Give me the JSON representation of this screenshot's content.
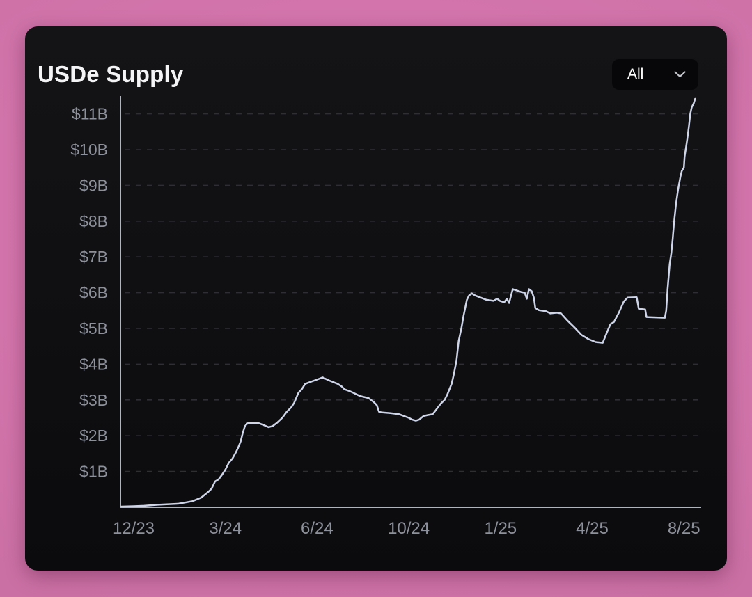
{
  "page": {
    "background_inner": "#dc7ab5",
    "background_outer": "#c46c9e",
    "card_background": "#0e0e10"
  },
  "header": {
    "title": "USDe Supply",
    "range_selector": {
      "value": "All",
      "icon": "chevron-down-icon"
    }
  },
  "chart_data": {
    "type": "line",
    "title": "USDe Supply",
    "series_name": "USDe Supply",
    "unit": "$B",
    "legend": "none",
    "grid": "dashed horizontal gridlines",
    "ylim": [
      0,
      11.6
    ],
    "x_unit": "months since Dec 2023 (tick marks equally spaced on screen)",
    "x_ticks": [
      {
        "m": 0,
        "label": "12/23"
      },
      {
        "m": 3,
        "label": "3/24"
      },
      {
        "m": 6,
        "label": "6/24"
      },
      {
        "m": 10,
        "label": "10/24"
      },
      {
        "m": 13,
        "label": "1/25"
      },
      {
        "m": 16,
        "label": "4/25"
      },
      {
        "m": 20,
        "label": "8/25"
      }
    ],
    "y_ticks": [
      {
        "value": 1,
        "label": "$1B"
      },
      {
        "value": 2,
        "label": "$2B"
      },
      {
        "value": 3,
        "label": "$3B"
      },
      {
        "value": 4,
        "label": "$4B"
      },
      {
        "value": 5,
        "label": "$5B"
      },
      {
        "value": 6,
        "label": "$6B"
      },
      {
        "value": 7,
        "label": "$7B"
      },
      {
        "value": 8,
        "label": "$8B"
      },
      {
        "value": 9,
        "label": "$9B"
      },
      {
        "value": 10,
        "label": "$10B"
      },
      {
        "value": 11,
        "label": "$11B"
      }
    ],
    "points_format": "[months_since_12_2023, supply_billions_usd]",
    "points": [
      [
        -0.4,
        0.02
      ],
      [
        0,
        0.03
      ],
      [
        0.34,
        0.04
      ],
      [
        0.79,
        0.07
      ],
      [
        1.47,
        0.1
      ],
      [
        1.92,
        0.17
      ],
      [
        2.21,
        0.27
      ],
      [
        2.44,
        0.43
      ],
      [
        2.55,
        0.52
      ],
      [
        2.66,
        0.72
      ],
      [
        2.78,
        0.78
      ],
      [
        2.89,
        0.91
      ],
      [
        3.0,
        1.05
      ],
      [
        3.11,
        1.24
      ],
      [
        3.23,
        1.36
      ],
      [
        3.34,
        1.53
      ],
      [
        3.41,
        1.65
      ],
      [
        3.5,
        1.84
      ],
      [
        3.57,
        2.08
      ],
      [
        3.64,
        2.27
      ],
      [
        3.73,
        2.35
      ],
      [
        4.09,
        2.35
      ],
      [
        4.25,
        2.3
      ],
      [
        4.41,
        2.24
      ],
      [
        4.55,
        2.27
      ],
      [
        4.7,
        2.37
      ],
      [
        4.86,
        2.5
      ],
      [
        5.0,
        2.66
      ],
      [
        5.16,
        2.8
      ],
      [
        5.25,
        2.92
      ],
      [
        5.39,
        3.2
      ],
      [
        5.5,
        3.3
      ],
      [
        5.61,
        3.45
      ],
      [
        5.77,
        3.5
      ],
      [
        6.0,
        3.57
      ],
      [
        6.24,
        3.63
      ],
      [
        6.5,
        3.55
      ],
      [
        6.9,
        3.45
      ],
      [
        7.07,
        3.38
      ],
      [
        7.19,
        3.3
      ],
      [
        7.45,
        3.24
      ],
      [
        7.87,
        3.11
      ],
      [
        8.25,
        3.05
      ],
      [
        8.49,
        2.93
      ],
      [
        8.61,
        2.85
      ],
      [
        8.7,
        2.67
      ],
      [
        8.84,
        2.65
      ],
      [
        9.2,
        2.63
      ],
      [
        9.59,
        2.6
      ],
      [
        9.79,
        2.55
      ],
      [
        10.0,
        2.5
      ],
      [
        10.11,
        2.45
      ],
      [
        10.23,
        2.42
      ],
      [
        10.34,
        2.45
      ],
      [
        10.48,
        2.55
      ],
      [
        10.64,
        2.58
      ],
      [
        10.78,
        2.6
      ],
      [
        10.87,
        2.7
      ],
      [
        11.05,
        2.9
      ],
      [
        11.17,
        3.0
      ],
      [
        11.26,
        3.15
      ],
      [
        11.33,
        3.3
      ],
      [
        11.4,
        3.45
      ],
      [
        11.47,
        3.7
      ],
      [
        11.56,
        4.1
      ],
      [
        11.63,
        4.65
      ],
      [
        11.72,
        5.0
      ],
      [
        11.79,
        5.35
      ],
      [
        11.9,
        5.8
      ],
      [
        11.97,
        5.92
      ],
      [
        12.06,
        5.98
      ],
      [
        12.17,
        5.92
      ],
      [
        12.54,
        5.8
      ],
      [
        12.77,
        5.77
      ],
      [
        12.89,
        5.83
      ],
      [
        12.98,
        5.77
      ],
      [
        13.12,
        5.73
      ],
      [
        13.21,
        5.83
      ],
      [
        13.28,
        5.71
      ],
      [
        13.4,
        6.1
      ],
      [
        13.67,
        6.02
      ],
      [
        13.79,
        6.0
      ],
      [
        13.86,
        5.83
      ],
      [
        13.93,
        6.1
      ],
      [
        14.02,
        6.04
      ],
      [
        14.09,
        5.86
      ],
      [
        14.14,
        5.57
      ],
      [
        14.26,
        5.51
      ],
      [
        14.49,
        5.48
      ],
      [
        14.63,
        5.42
      ],
      [
        14.84,
        5.44
      ],
      [
        14.98,
        5.42
      ],
      [
        15.19,
        5.22
      ],
      [
        15.42,
        5.03
      ],
      [
        15.65,
        4.82
      ],
      [
        15.88,
        4.7
      ],
      [
        16.15,
        4.62
      ],
      [
        16.46,
        4.6
      ],
      [
        16.65,
        4.9
      ],
      [
        16.8,
        5.12
      ],
      [
        16.95,
        5.18
      ],
      [
        17.17,
        5.45
      ],
      [
        17.38,
        5.75
      ],
      [
        17.54,
        5.86
      ],
      [
        17.94,
        5.87
      ],
      [
        18.03,
        5.55
      ],
      [
        18.31,
        5.53
      ],
      [
        18.37,
        5.32
      ],
      [
        19.17,
        5.3
      ],
      [
        19.23,
        5.5
      ],
      [
        19.29,
        6.1
      ],
      [
        19.38,
        6.8
      ],
      [
        19.45,
        7.1
      ],
      [
        19.51,
        7.5
      ],
      [
        19.57,
        7.95
      ],
      [
        19.66,
        8.5
      ],
      [
        19.75,
        8.9
      ],
      [
        19.85,
        9.25
      ],
      [
        19.91,
        9.4
      ],
      [
        20.0,
        9.5
      ],
      [
        20.03,
        9.8
      ],
      [
        20.09,
        10.05
      ],
      [
        20.15,
        10.3
      ],
      [
        20.22,
        10.65
      ],
      [
        20.28,
        11.0
      ],
      [
        20.34,
        11.18
      ],
      [
        20.43,
        11.3
      ],
      [
        20.49,
        11.42
      ]
    ],
    "colors": {
      "line": "#cfd5e9",
      "axis": "#b0b4bd",
      "grid": "#2e2e34",
      "tick_labels": "#8d919c",
      "title": "#f4f4f6"
    }
  }
}
